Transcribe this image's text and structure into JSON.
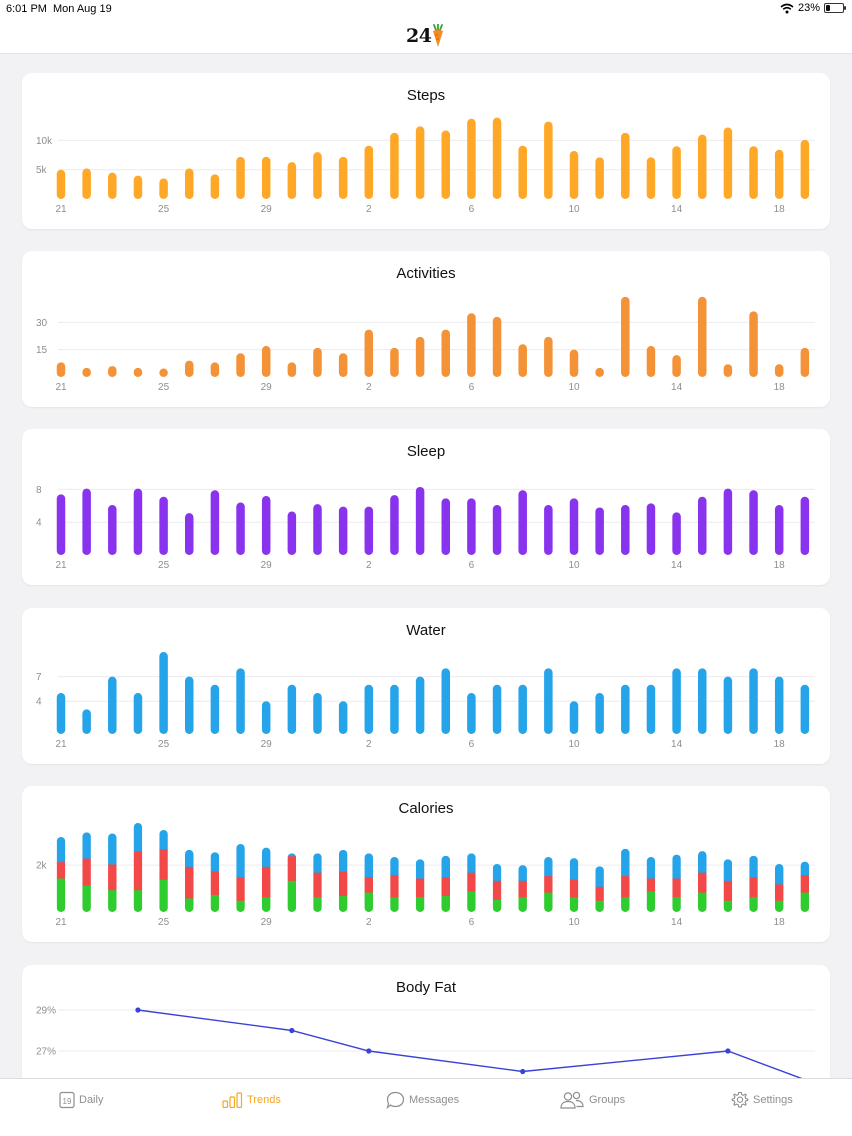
{
  "status_bar": {
    "time": "6:01 PM",
    "date": "Mon Aug 19",
    "battery": "23%"
  },
  "app": {
    "logo_text": "24",
    "logo_icon": "carrot-icon"
  },
  "x_labels": [
    "21",
    "25",
    "29",
    "2",
    "6",
    "10",
    "14",
    "18"
  ],
  "charts": [
    {
      "key": "steps",
      "type": "bar",
      "title": "Steps",
      "color": "#ffa726",
      "ylim": [
        0,
        14000
      ],
      "y_ticks": [
        {
          "value": 5000,
          "label": "5k"
        },
        {
          "value": 10000,
          "label": "10k"
        }
      ],
      "values": [
        5000,
        5200,
        4500,
        4000,
        3500,
        5200,
        4200,
        7200,
        7200,
        6300,
        8000,
        7200,
        9100,
        11300,
        12400,
        11700,
        13700,
        13900,
        9100,
        13200,
        8200,
        7100,
        11300,
        7100,
        9000,
        11000,
        12200,
        9000,
        8400,
        10100
      ]
    },
    {
      "key": "activities",
      "type": "bar",
      "title": "Activities",
      "color": "#f39236",
      "ylim": [
        0,
        45
      ],
      "y_ticks": [
        {
          "value": 15,
          "label": "15"
        },
        {
          "value": 30,
          "label": "30"
        }
      ],
      "values": [
        8,
        5,
        6,
        5,
        4,
        9,
        8,
        13,
        17,
        8,
        16,
        13,
        26,
        16,
        22,
        26,
        35,
        33,
        18,
        22,
        15,
        5,
        44,
        17,
        12,
        44,
        7,
        36,
        7,
        16
      ]
    },
    {
      "key": "sleep",
      "type": "bar",
      "title": "Sleep",
      "color": "#8a33ee",
      "ylim": [
        0,
        10
      ],
      "y_ticks": [
        {
          "value": 4,
          "label": "4"
        },
        {
          "value": 8,
          "label": "8"
        }
      ],
      "values": [
        7.4,
        8.1,
        6.1,
        8.1,
        7.1,
        5.1,
        7.9,
        6.4,
        7.2,
        5.3,
        6.2,
        5.9,
        5.9,
        7.3,
        8.3,
        6.9,
        6.9,
        6.1,
        7.9,
        6.1,
        6.9,
        5.8,
        6.1,
        6.3,
        5.2,
        7.1,
        8.1,
        7.9,
        6.1,
        7.1
      ]
    },
    {
      "key": "water",
      "type": "bar",
      "title": "Water",
      "color": "#25a4ea",
      "ylim": [
        0,
        10
      ],
      "y_ticks": [
        {
          "value": 4,
          "label": "4"
        },
        {
          "value": 7,
          "label": "7"
        }
      ],
      "values": [
        5,
        3,
        7,
        5,
        10,
        7,
        6,
        8,
        4,
        6,
        5,
        4,
        6,
        6,
        7,
        8,
        5,
        6,
        6,
        8,
        4,
        5,
        6,
        6,
        8,
        8,
        7,
        8,
        7,
        6
      ]
    },
    {
      "key": "calories",
      "type": "stacked-bar",
      "title": "Calories",
      "colors": [
        "#2ecc2e",
        "#f24848",
        "#25a4ea"
      ],
      "ylim": [
        0,
        3500
      ],
      "y_ticks": [
        {
          "value": 2000,
          "label": "2k"
        }
      ],
      "stacks": [
        [
          1450,
          700,
          1050
        ],
        [
          1150,
          1150,
          1100
        ],
        [
          950,
          1100,
          1300
        ],
        [
          950,
          1650,
          1200
        ],
        [
          1400,
          1300,
          800
        ],
        [
          600,
          1350,
          700
        ],
        [
          750,
          1000,
          800
        ],
        [
          500,
          1000,
          1400
        ],
        [
          650,
          1300,
          800
        ],
        [
          1350,
          1050,
          100
        ],
        [
          650,
          1050,
          800
        ],
        [
          700,
          1050,
          900
        ],
        [
          850,
          650,
          1000
        ],
        [
          650,
          950,
          750
        ],
        [
          650,
          800,
          800
        ],
        [
          700,
          800,
          900
        ],
        [
          900,
          800,
          800
        ],
        [
          550,
          800,
          700
        ],
        [
          650,
          700,
          650
        ],
        [
          850,
          700,
          800
        ],
        [
          650,
          750,
          900
        ],
        [
          500,
          600,
          850
        ],
        [
          650,
          900,
          1150
        ],
        [
          900,
          550,
          900
        ],
        [
          650,
          800,
          1000
        ],
        [
          850,
          850,
          900
        ],
        [
          500,
          850,
          900
        ],
        [
          650,
          850,
          900
        ],
        [
          500,
          700,
          850
        ],
        [
          850,
          750,
          550
        ]
      ]
    }
  ],
  "body_fat": {
    "type": "line",
    "title": "Body Fat",
    "color": "#3a43d6",
    "ylim": [
      25.5,
      29.5
    ],
    "y_ticks": [
      {
        "value": 27,
        "label": "27%"
      },
      {
        "value": 29,
        "label": "29%"
      }
    ],
    "points": [
      {
        "x": 3,
        "y": 29.0
      },
      {
        "x": 9,
        "y": 28.0
      },
      {
        "x": 12,
        "y": 27.0
      },
      {
        "x": 18,
        "y": 26.0
      },
      {
        "x": 26,
        "y": 27.0
      },
      {
        "x": 29,
        "y": 25.6
      }
    ]
  },
  "tab_bar": {
    "items": [
      {
        "key": "daily",
        "label": "Daily",
        "icon": "calendar-19-icon",
        "icon_text": "19",
        "active": false
      },
      {
        "key": "trends",
        "label": "Trends",
        "icon": "bar-chart-icon",
        "active": true
      },
      {
        "key": "messages",
        "label": "Messages",
        "icon": "chat-bubble-icon",
        "active": false
      },
      {
        "key": "groups",
        "label": "Groups",
        "icon": "people-icon",
        "active": false
      },
      {
        "key": "settings",
        "label": "Settings",
        "icon": "gear-icon",
        "active": false
      }
    ]
  }
}
